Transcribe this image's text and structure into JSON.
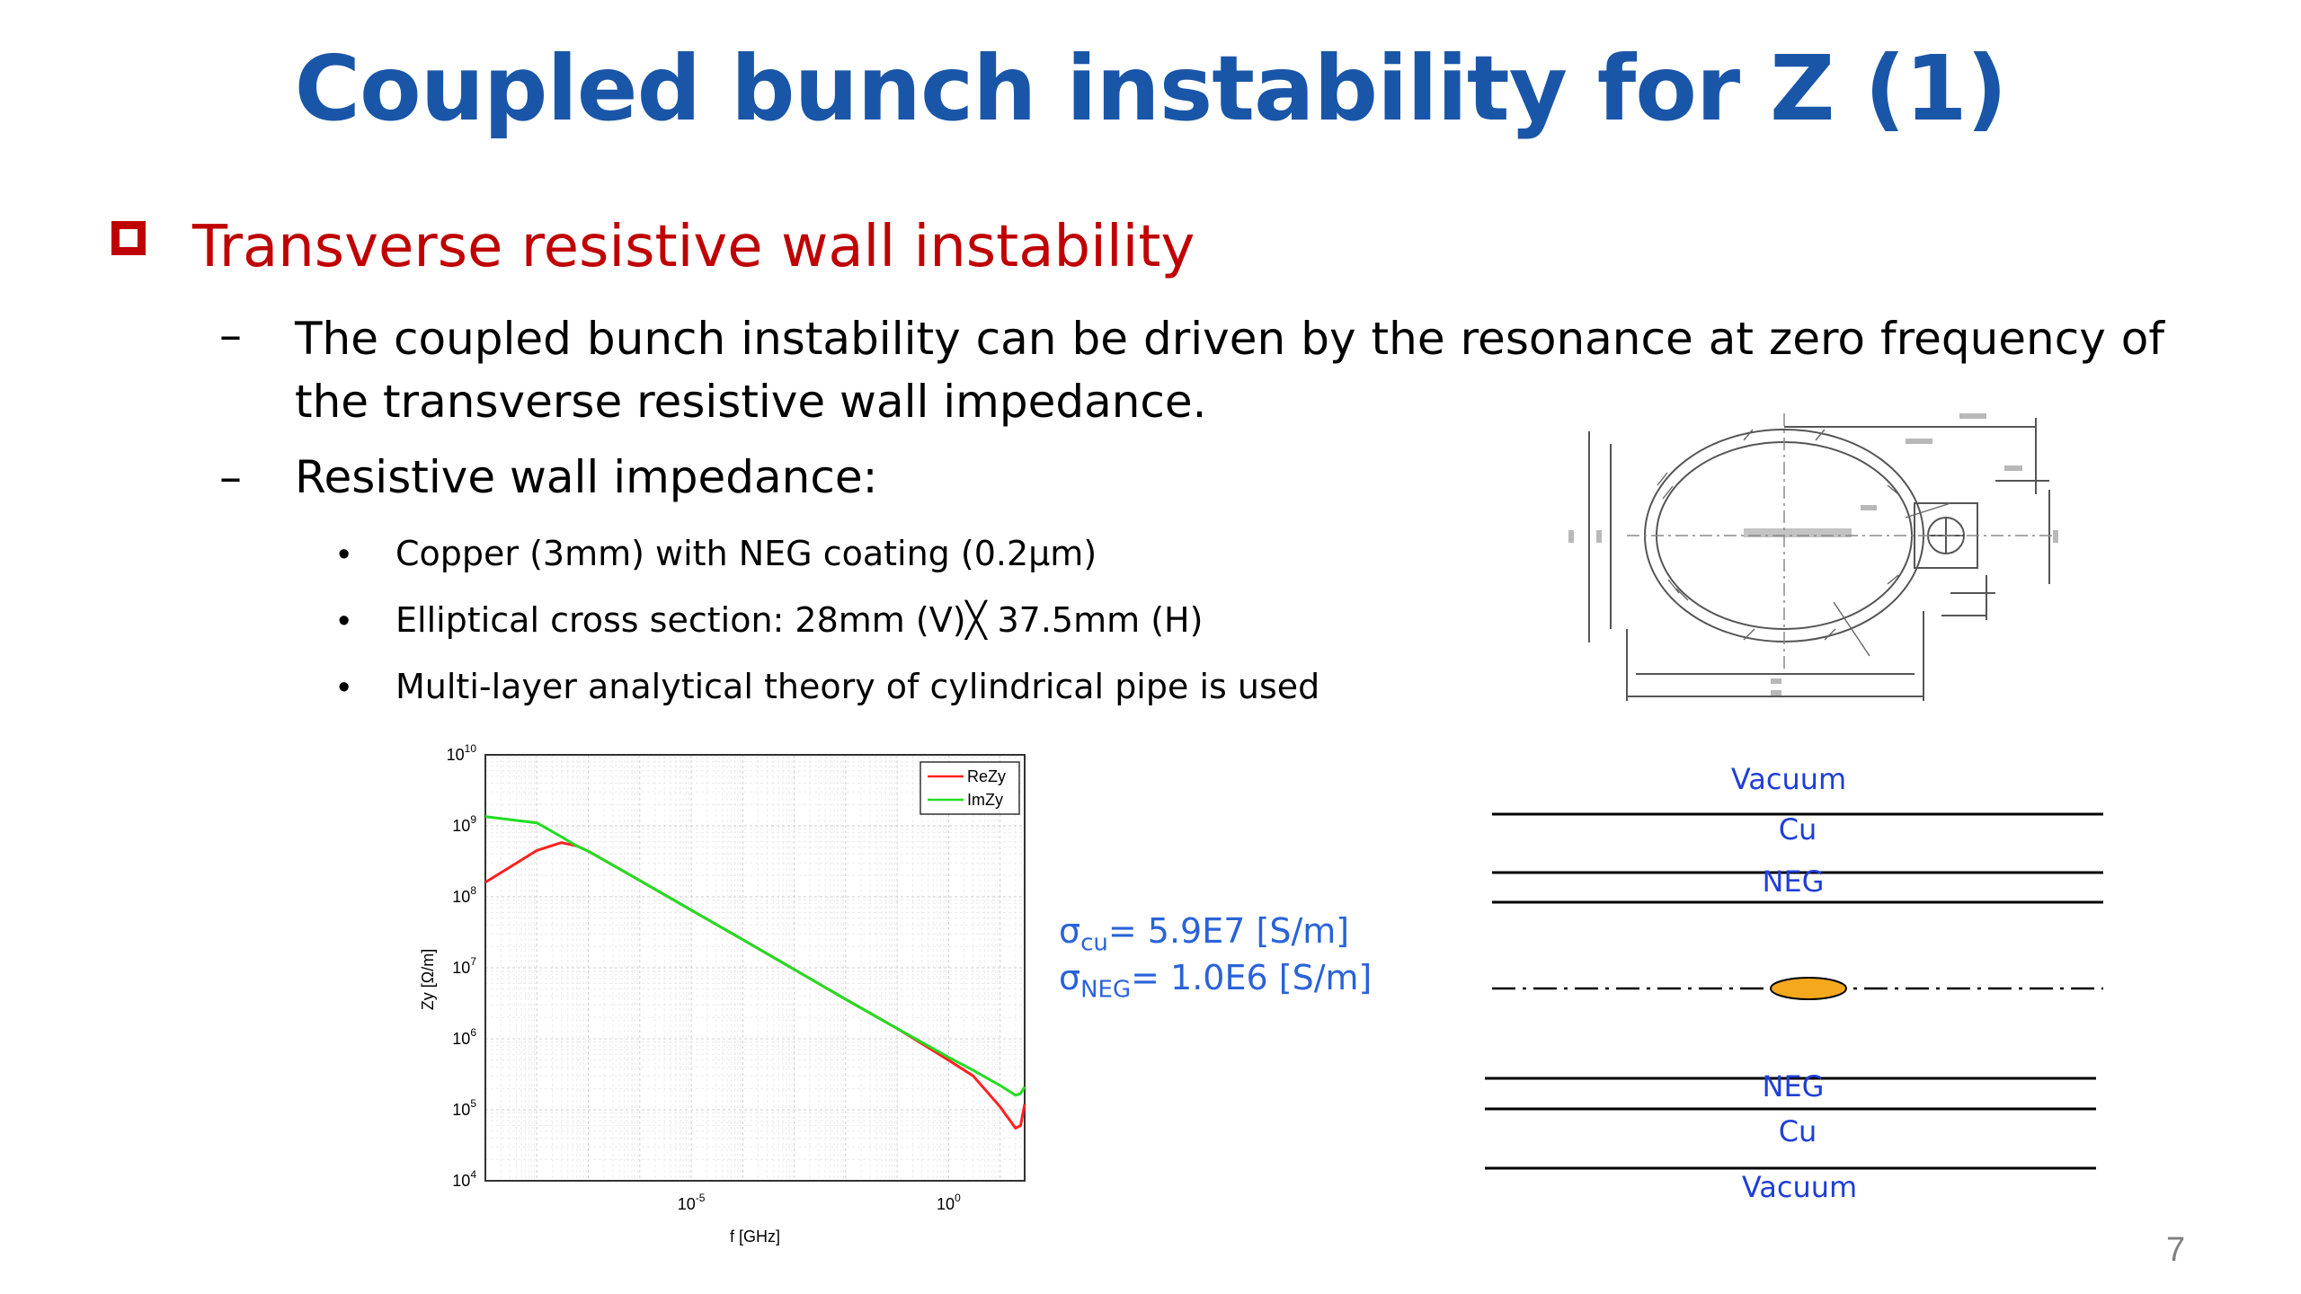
{
  "title": "Coupled bunch instability for Z (1)",
  "heading": "Transverse resistive wall instability",
  "bullets": {
    "dash": "–",
    "dot": "•",
    "b1": "The coupled bunch instability can be driven by the resonance at zero frequency of the transverse resistive wall impedance.",
    "b2": "Resistive wall impedance:",
    "sub": [
      "Copper (3mm) with NEG coating (0.2μm)",
      "Elliptical cross section: 28mm (V)╳ 37.5mm (H)",
      "Multi-layer analytical theory of cylindrical pipe is used"
    ]
  },
  "sigma": {
    "cu_sym": "σ",
    "cu_sub": "cu",
    "cu_val": "= 5.9E7 [S/m]",
    "neg_sym": "σ",
    "neg_sub": "NEG",
    "neg_val": "= 1.0E6 [S/m]"
  },
  "layers": {
    "top": [
      "Vacuum",
      "Cu",
      "NEG"
    ],
    "bottom": [
      "NEG",
      "Cu",
      "Vacuum"
    ],
    "bunch_color": "#f5a81c"
  },
  "page_number": "7",
  "chart_data": {
    "type": "line",
    "title": "",
    "xlabel": "f [GHz]",
    "ylabel": "Zy [Ω/m]",
    "xscale": "log",
    "yscale": "log",
    "xlim": [
      1e-09,
      30
    ],
    "ylim": [
      10000.0,
      10000000000.0
    ],
    "xticks": [
      {
        "v": 1e-05,
        "base": "10",
        "exp": "-5"
      },
      {
        "v": 1,
        "base": "10",
        "exp": "0"
      }
    ],
    "yticks": [
      {
        "v": 10000.0,
        "base": "10",
        "exp": "4"
      },
      {
        "v": 100000.0,
        "base": "10",
        "exp": "5"
      },
      {
        "v": 1000000.0,
        "base": "10",
        "exp": "6"
      },
      {
        "v": 10000000.0,
        "base": "10",
        "exp": "7"
      },
      {
        "v": 100000000.0,
        "base": "10",
        "exp": "8"
      },
      {
        "v": 1000000000.0,
        "base": "10",
        "exp": "9"
      },
      {
        "v": 10000000000.0,
        "base": "10",
        "exp": "10"
      }
    ],
    "grid": true,
    "legend_position": "top-right",
    "series": [
      {
        "name": "ReZy",
        "color": "#ff2020",
        "x": [
          1e-09,
          1e-08,
          3e-08,
          6e-08,
          1e-07,
          1e-06,
          1e-05,
          0.0001,
          0.001,
          0.01,
          0.1,
          1,
          3,
          10,
          20,
          25,
          30
        ],
        "y": [
          160000000.0,
          450000000.0,
          580000000.0,
          520000000.0,
          440000000.0,
          170000000.0,
          65000000.0,
          25000000.0,
          9500000.0,
          3600000.0,
          1400000.0,
          500000.0,
          300000.0,
          110000.0,
          55000.0,
          60000.0,
          120000.0
        ]
      },
      {
        "name": "ImZy",
        "color": "#22dd22",
        "x": [
          1e-09,
          1e-08,
          3e-08,
          6e-08,
          1e-07,
          1e-06,
          1e-05,
          0.0001,
          0.001,
          0.01,
          0.1,
          1,
          3,
          10,
          20,
          25,
          30
        ],
        "y": [
          1350000000.0,
          1100000000.0,
          700000000.0,
          520000000.0,
          440000000.0,
          170000000.0,
          65000000.0,
          25000000.0,
          9500000.0,
          3600000.0,
          1400000.0,
          550000.0,
          360000.0,
          220000.0,
          160000.0,
          170000.0,
          210000.0
        ]
      }
    ]
  }
}
